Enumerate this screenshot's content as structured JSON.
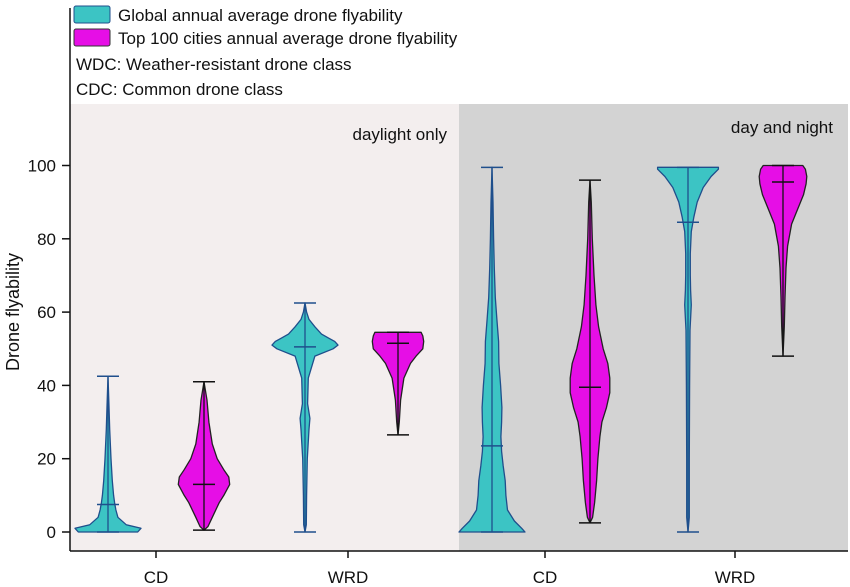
{
  "colors": {
    "global_fill": "#3cc4c4",
    "global_stroke": "#1f4f8c",
    "top100_fill": "#e60ee6",
    "top100_stroke": "#222222",
    "daylight_bg": "#f3eeee",
    "daynight_bg": "#d3d3d3"
  },
  "legend": {
    "items": [
      {
        "label": "Global annual average drone flyability",
        "series": "global"
      },
      {
        "label": "Top 100 cities annual average drone flyability",
        "series": "top100"
      }
    ],
    "notes": [
      "WDC: Weather-resistant drone class",
      "CDC: Common drone class"
    ]
  },
  "chart_data": {
    "type": "violin",
    "ylabel": "Drone flyability",
    "ylim": [
      0,
      115
    ],
    "yticks": [
      0,
      20,
      40,
      60,
      80,
      100
    ],
    "panels": [
      {
        "label": "daylight only",
        "bg": "daylight"
      },
      {
        "label": "day and night",
        "bg": "daynight"
      }
    ],
    "categories": [
      "CD",
      "WRD",
      "CD",
      "WRD"
    ],
    "series": [
      {
        "name": "Global annual average drone flyability",
        "key": "global"
      },
      {
        "name": "Top 100 cities annual average drone flyability",
        "key": "top100"
      }
    ],
    "violins": [
      {
        "panel": 0,
        "category": 0,
        "series": "global",
        "min": 0,
        "max": 42.5,
        "median": 7.5,
        "shape": [
          [
            0,
            0.9
          ],
          [
            1,
            1.0
          ],
          [
            2,
            0.55
          ],
          [
            4,
            0.3
          ],
          [
            6,
            0.24
          ],
          [
            8,
            0.2
          ],
          [
            10,
            0.17
          ],
          [
            14,
            0.13
          ],
          [
            20,
            0.09
          ],
          [
            28,
            0.05
          ],
          [
            36,
            0.025
          ],
          [
            42.5,
            0
          ]
        ]
      },
      {
        "panel": 0,
        "category": 0,
        "series": "top100",
        "min": 0.5,
        "max": 41,
        "median": 13,
        "shape": [
          [
            0.5,
            0
          ],
          [
            1.5,
            0.12
          ],
          [
            4,
            0.25
          ],
          [
            8,
            0.46
          ],
          [
            10,
            0.6
          ],
          [
            13,
            0.78
          ],
          [
            15,
            0.75
          ],
          [
            17,
            0.6
          ],
          [
            20,
            0.4
          ],
          [
            24,
            0.25
          ],
          [
            30,
            0.15
          ],
          [
            36,
            0.09
          ],
          [
            41,
            0
          ]
        ]
      },
      {
        "panel": 0,
        "category": 1,
        "series": "global",
        "min": 0,
        "max": 62.5,
        "median": 50.5,
        "shape": [
          [
            0,
            0
          ],
          [
            2,
            0.04
          ],
          [
            10,
            0.05
          ],
          [
            20,
            0.07
          ],
          [
            28,
            0.12
          ],
          [
            31,
            0.15
          ],
          [
            35,
            0.08
          ],
          [
            42,
            0.1
          ],
          [
            48,
            0.3
          ],
          [
            50,
            0.85
          ],
          [
            51,
            1.0
          ],
          [
            52,
            0.9
          ],
          [
            53,
            0.7
          ],
          [
            54,
            0.5
          ],
          [
            56,
            0.3
          ],
          [
            58,
            0.12
          ],
          [
            60,
            0.05
          ],
          [
            62.5,
            0
          ]
        ]
      },
      {
        "panel": 0,
        "category": 1,
        "series": "top100",
        "min": 26.5,
        "max": 54.5,
        "median": 51.5,
        "shape": [
          [
            26.5,
            0
          ],
          [
            30,
            0.04
          ],
          [
            36,
            0.08
          ],
          [
            42,
            0.18
          ],
          [
            46,
            0.38
          ],
          [
            48,
            0.55
          ],
          [
            50,
            0.75
          ],
          [
            52,
            0.78
          ],
          [
            53.5,
            0.75
          ],
          [
            54.5,
            0.7
          ]
        ]
      },
      {
        "panel": 1,
        "category": 2,
        "series": "global",
        "min": 0,
        "max": 99.5,
        "median": 23.5,
        "shape": [
          [
            0,
            1.0
          ],
          [
            1,
            0.9
          ],
          [
            3,
            0.68
          ],
          [
            6,
            0.47
          ],
          [
            10,
            0.42
          ],
          [
            14,
            0.4
          ],
          [
            18,
            0.34
          ],
          [
            22,
            0.29
          ],
          [
            26,
            0.27
          ],
          [
            30,
            0.29
          ],
          [
            34,
            0.3
          ],
          [
            40,
            0.26
          ],
          [
            46,
            0.21
          ],
          [
            52,
            0.2
          ],
          [
            58,
            0.15
          ],
          [
            64,
            0.1
          ],
          [
            72,
            0.07
          ],
          [
            80,
            0.05
          ],
          [
            90,
            0.03
          ],
          [
            99.5,
            0
          ]
        ]
      },
      {
        "panel": 1,
        "category": 2,
        "series": "top100",
        "min": 2.5,
        "max": 96,
        "median": 39.5,
        "shape": [
          [
            2.5,
            0
          ],
          [
            4,
            0.08
          ],
          [
            8,
            0.14
          ],
          [
            14,
            0.2
          ],
          [
            20,
            0.24
          ],
          [
            26,
            0.3
          ],
          [
            30,
            0.36
          ],
          [
            34,
            0.5
          ],
          [
            38,
            0.6
          ],
          [
            42,
            0.6
          ],
          [
            46,
            0.54
          ],
          [
            50,
            0.4
          ],
          [
            56,
            0.26
          ],
          [
            62,
            0.18
          ],
          [
            70,
            0.12
          ],
          [
            80,
            0.07
          ],
          [
            90,
            0.04
          ],
          [
            96,
            0
          ]
        ]
      },
      {
        "panel": 1,
        "category": 3,
        "series": "global",
        "min": 0,
        "max": 99.5,
        "median": 84.5,
        "shape": [
          [
            0,
            0
          ],
          [
            4,
            0.04
          ],
          [
            20,
            0.04
          ],
          [
            40,
            0.05
          ],
          [
            55,
            0.06
          ],
          [
            62,
            0.1
          ],
          [
            66,
            0.08
          ],
          [
            70,
            0.07
          ],
          [
            76,
            0.07
          ],
          [
            82,
            0.1
          ],
          [
            86,
            0.18
          ],
          [
            90,
            0.28
          ],
          [
            94,
            0.46
          ],
          [
            97,
            0.7
          ],
          [
            99,
            0.92
          ],
          [
            99.5,
            0.92
          ]
        ]
      },
      {
        "panel": 1,
        "category": 3,
        "series": "top100",
        "min": 48,
        "max": 100,
        "median": 95.5,
        "shape": [
          [
            48,
            0
          ],
          [
            56,
            0.04
          ],
          [
            64,
            0.06
          ],
          [
            72,
            0.09
          ],
          [
            78,
            0.14
          ],
          [
            84,
            0.26
          ],
          [
            88,
            0.44
          ],
          [
            92,
            0.62
          ],
          [
            95,
            0.7
          ],
          [
            97,
            0.72
          ],
          [
            99,
            0.68
          ],
          [
            100,
            0.6
          ]
        ]
      }
    ]
  }
}
